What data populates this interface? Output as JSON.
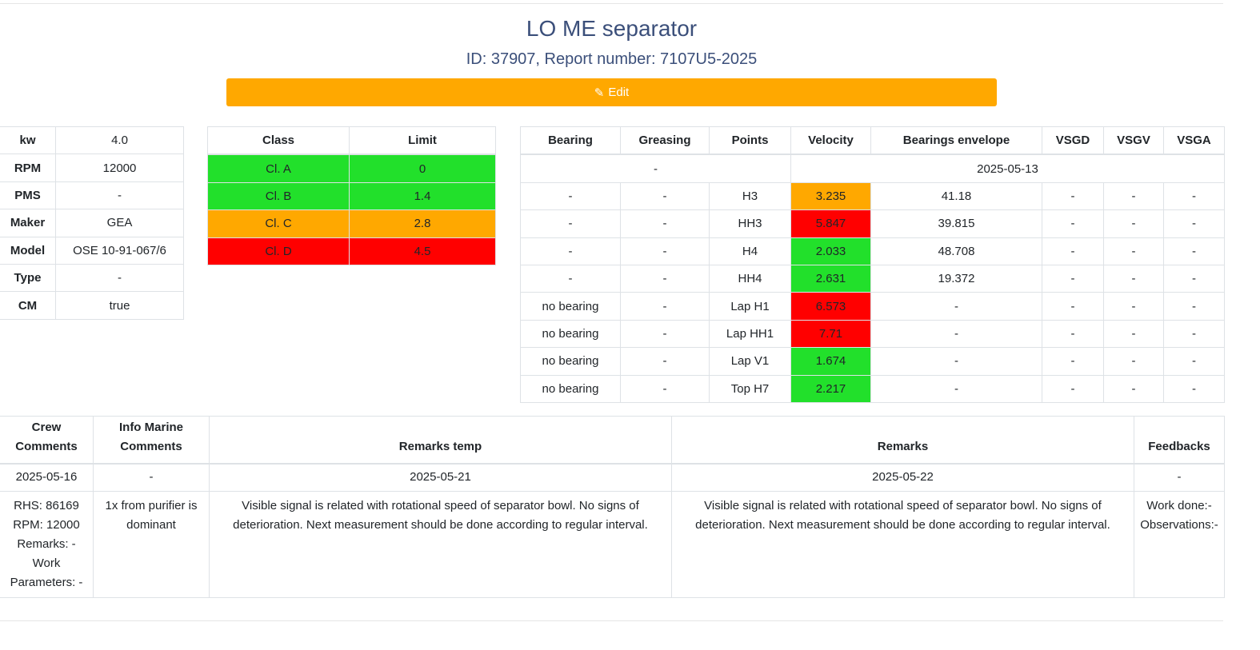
{
  "header": {
    "title": "LO ME separator",
    "subtitle": "ID: 37907, Report number: 7107U5-2025",
    "edit_label": "Edit"
  },
  "colors": {
    "green": "#22e02b",
    "orange": "#ffa800",
    "red": "#ff0000"
  },
  "specs": [
    {
      "k": "kw",
      "v": "4.0"
    },
    {
      "k": "RPM",
      "v": "12000"
    },
    {
      "k": "PMS",
      "v": "-"
    },
    {
      "k": "Maker",
      "v": "GEA"
    },
    {
      "k": "Model",
      "v": "OSE 10-91-067/6"
    },
    {
      "k": "Type",
      "v": "-"
    },
    {
      "k": "CM",
      "v": "true"
    }
  ],
  "classes": {
    "headers": [
      "Class",
      "Limit"
    ],
    "rows": [
      {
        "c": "Cl. A",
        "l": "0",
        "s": "g"
      },
      {
        "c": "Cl. B",
        "l": "1.4",
        "s": "g"
      },
      {
        "c": "Cl. C",
        "l": "2.8",
        "s": "o"
      },
      {
        "c": "Cl. D",
        "l": "4.5",
        "s": "r"
      }
    ]
  },
  "measurements": {
    "headers": [
      "Bearing",
      "Greasing",
      "Points",
      "Velocity",
      "Bearings envelope",
      "VSGD",
      "VSGV",
      "VSGA"
    ],
    "left_group": "-",
    "date": "2025-05-13",
    "rows": [
      [
        "-",
        "-",
        "H3",
        "3.235",
        "41.18",
        "-",
        "-",
        "-",
        "o"
      ],
      [
        "-",
        "-",
        "HH3",
        "5.847",
        "39.815",
        "-",
        "-",
        "-",
        "r"
      ],
      [
        "-",
        "-",
        "H4",
        "2.033",
        "48.708",
        "-",
        "-",
        "-",
        "g"
      ],
      [
        "-",
        "-",
        "HH4",
        "2.631",
        "19.372",
        "-",
        "-",
        "-",
        "g"
      ],
      [
        "no bearing",
        "-",
        "Lap H1",
        "6.573",
        "-",
        "-",
        "-",
        "-",
        "r"
      ],
      [
        "no bearing",
        "-",
        "Lap HH1",
        "7.71",
        "-",
        "-",
        "-",
        "-",
        "r"
      ],
      [
        "no bearing",
        "-",
        "Lap V1",
        "1.674",
        "-",
        "-",
        "-",
        "-",
        "g"
      ],
      [
        "no bearing",
        "-",
        "Top H7",
        "2.217",
        "-",
        "-",
        "-",
        "-",
        "g"
      ]
    ]
  },
  "comments": {
    "headers": [
      "Crew Comments",
      "Info Marine Comments",
      "Remarks temp",
      "Remarks",
      "Feedbacks"
    ],
    "dates": [
      "2025-05-16",
      "-",
      "2025-05-21",
      "2025-05-22",
      "-"
    ],
    "content": [
      "RHS: 86169 RPM: 12000 Remarks: - Work Parameters: -",
      "1x from purifier is dominant",
      "Visible signal is related with rotational speed of separator bowl. No signs of deterioration. Next measurement should be done according to regular interval.",
      "Visible signal is related with rotational speed of separator bowl. No signs of deterioration. Next measurement should be done according to regular interval.",
      "Work done:- Observations:-"
    ]
  }
}
